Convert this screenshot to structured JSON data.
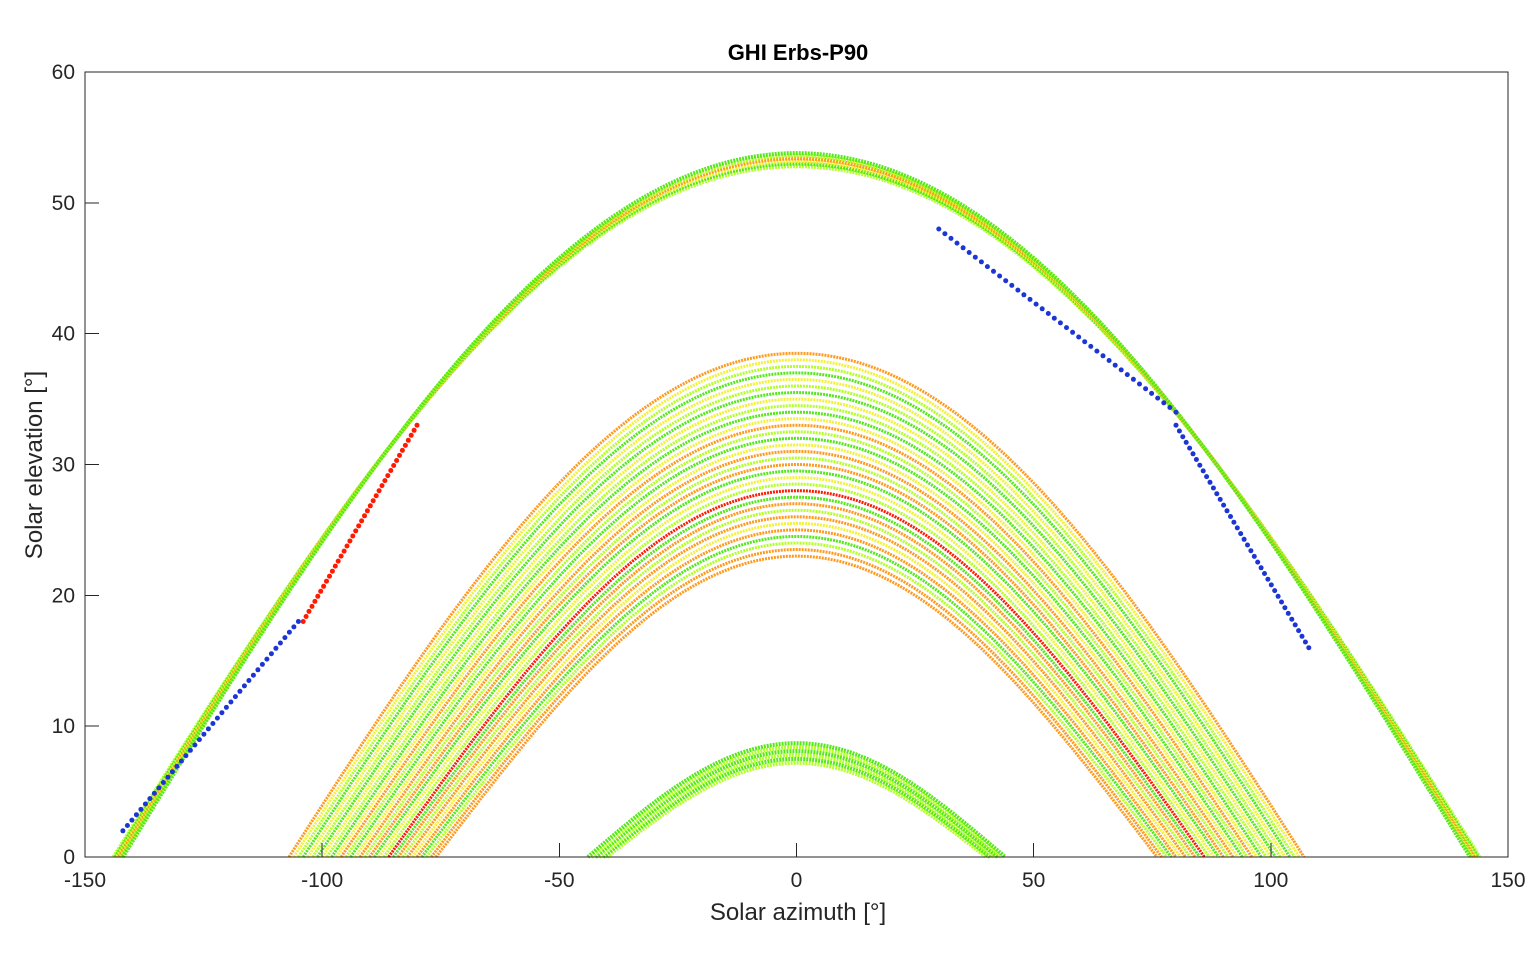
{
  "chart_data": {
    "type": "scatter",
    "title": "GHI Erbs-P90",
    "xlabel": "Solar azimuth [°]",
    "ylabel": "Solar elevation [°]",
    "xlim": [
      -150,
      150
    ],
    "ylim": [
      0,
      60
    ],
    "xticks": [
      -150,
      -100,
      -50,
      0,
      50,
      100,
      150
    ],
    "yticks": [
      0,
      10,
      20,
      30,
      40,
      50,
      60
    ],
    "xtick_labels": [
      "-150",
      "-100",
      "-50",
      "0",
      "50",
      "100",
      "150"
    ],
    "ytick_labels": [
      "0",
      "10",
      "20",
      "30",
      "40",
      "50",
      "60"
    ],
    "grid": false,
    "colors": {
      "red": "#ff1a00",
      "orange": "#ff9a1f",
      "yellow": "#f2f23a",
      "lightgreen": "#b4ff2a",
      "green": "#55e81a",
      "blue": "#1c36d6"
    },
    "bands": [
      {
        "group": "summer",
        "peak_elevations": [
          52.8,
          53.0,
          53.2,
          53.4,
          53.6,
          53.8
        ],
        "zero_azimuths": [
          -144,
          -142
        ],
        "colors": [
          "lightgreen",
          "green",
          "yellow",
          "orange",
          "lightgreen",
          "green"
        ]
      },
      {
        "group": "equinox",
        "peak_elevations": [
          23.0,
          23.5,
          24.0,
          24.5,
          25.0,
          25.5,
          26.0,
          26.5,
          27.0,
          27.5,
          28.0,
          28.5,
          29.0,
          29.5,
          30.0,
          30.5,
          31.0,
          31.5,
          32.0,
          32.5,
          33.0,
          33.5,
          34.0,
          34.5,
          35.0,
          35.5,
          36.0,
          36.5,
          37.0,
          37.5,
          38.0,
          38.5
        ],
        "zero_azimuths": [
          -76,
          -107
        ],
        "colors": [
          "orange",
          "orange",
          "lightgreen",
          "green",
          "orange",
          "yellow",
          "orange",
          "lightgreen",
          "orange",
          "green",
          "red",
          "lightgreen",
          "yellow",
          "green",
          "orange",
          "lightgreen",
          "orange",
          "yellow",
          "green",
          "lightgreen",
          "orange",
          "yellow",
          "green",
          "lightgreen",
          "yellow",
          "green",
          "lightgreen",
          "yellow",
          "green",
          "lightgreen",
          "yellow",
          "orange"
        ]
      },
      {
        "group": "winter",
        "peak_elevations": [
          7.2,
          7.5,
          7.8,
          8.1,
          8.4,
          8.7
        ],
        "zero_azimuths": [
          -40,
          -44
        ],
        "colors": [
          "lightgreen",
          "green",
          "lightgreen",
          "green",
          "lightgreen",
          "green"
        ]
      }
    ],
    "anomalies": [
      {
        "color": "red",
        "x_range": [
          -104,
          -80
        ],
        "y_range": [
          18,
          33
        ]
      },
      {
        "color": "blue",
        "x_range": [
          -142,
          -105
        ],
        "y_range": [
          2,
          18
        ]
      },
      {
        "color": "blue",
        "x_range": [
          80,
          108
        ],
        "y_range": [
          16,
          33
        ]
      },
      {
        "color": "blue",
        "x_range": [
          30,
          80
        ],
        "y_range": [
          34,
          48
        ]
      }
    ]
  }
}
